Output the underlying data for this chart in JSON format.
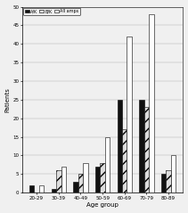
{
  "categories": [
    "20-29",
    "30-39",
    "40-49",
    "50-59",
    "60-69",
    "70-79",
    "80-89"
  ],
  "AK": [
    2,
    1,
    3,
    7,
    25,
    25,
    5
  ],
  "BK": [
    0,
    6,
    5,
    8,
    17,
    23,
    6
  ],
  "All_amps": [
    2,
    7,
    8,
    15,
    42,
    48,
    10
  ],
  "ylim": [
    0,
    50
  ],
  "yticks": [
    0,
    5,
    10,
    15,
    20,
    25,
    30,
    35,
    40,
    45,
    50
  ],
  "ylabel": "Patients",
  "xlabel": "Age group",
  "legend_labels": [
    "A/K",
    "B/K",
    "All amps"
  ],
  "bar_width": 0.22,
  "ak_color": "#111111",
  "bk_color": "#cccccc",
  "all_color": "#ffffff",
  "bk_hatch": "///",
  "background": "#f0f0f0",
  "plot_bg": "#f0f0f0"
}
